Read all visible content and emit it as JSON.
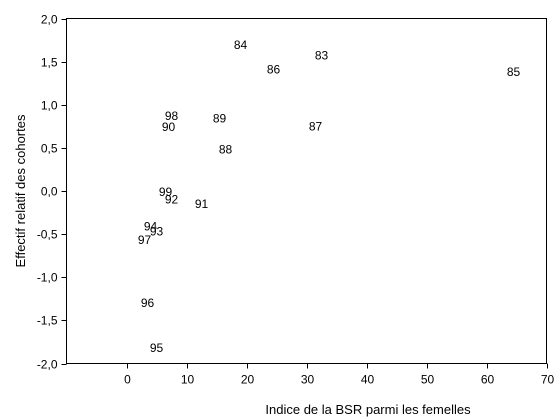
{
  "chart_data": {
    "type": "scatter",
    "title": "",
    "xlabel": "Indice de la BSR parmi les femelles",
    "ylabel": "Effectif relatif des cohortes",
    "xlim": [
      -10,
      70
    ],
    "ylim": [
      -2.0,
      2.0
    ],
    "xticks": [
      0,
      10,
      20,
      30,
      40,
      50,
      60,
      70
    ],
    "xtick_labels": [
      "0",
      "10",
      "20",
      "30",
      "40",
      "50",
      "60",
      "70"
    ],
    "yticks": [
      -2.0,
      -1.5,
      -1.0,
      -0.5,
      0.0,
      0.5,
      1.0,
      1.5,
      2.0
    ],
    "ytick_labels": [
      "-2,0",
      "-1,5",
      "-1,0",
      "-0,5",
      "0,0",
      "0,5",
      "1,0",
      "1,5",
      "2,0"
    ],
    "grid": false,
    "marker": "text-label",
    "points": [
      {
        "label": "84",
        "x": 19.0,
        "y": 1.69
      },
      {
        "label": "83",
        "x": 32.5,
        "y": 1.57
      },
      {
        "label": "86",
        "x": 24.5,
        "y": 1.41
      },
      {
        "label": "85",
        "x": 64.5,
        "y": 1.38
      },
      {
        "label": "98",
        "x": 7.5,
        "y": 0.87
      },
      {
        "label": "89",
        "x": 15.5,
        "y": 0.84
      },
      {
        "label": "90",
        "x": 7.0,
        "y": 0.74
      },
      {
        "label": "87",
        "x": 31.5,
        "y": 0.75
      },
      {
        "label": "88",
        "x": 16.5,
        "y": 0.48
      },
      {
        "label": "99",
        "x": 6.5,
        "y": -0.01
      },
      {
        "label": "92",
        "x": 7.5,
        "y": -0.1
      },
      {
        "label": "91",
        "x": 12.5,
        "y": -0.15
      },
      {
        "label": "94",
        "x": 4.0,
        "y": -0.41
      },
      {
        "label": "93",
        "x": 5.0,
        "y": -0.47
      },
      {
        "label": "97",
        "x": 3.0,
        "y": -0.57
      },
      {
        "label": "96",
        "x": 3.5,
        "y": -1.3
      },
      {
        "label": "95",
        "x": 5.0,
        "y": -1.82
      }
    ]
  }
}
